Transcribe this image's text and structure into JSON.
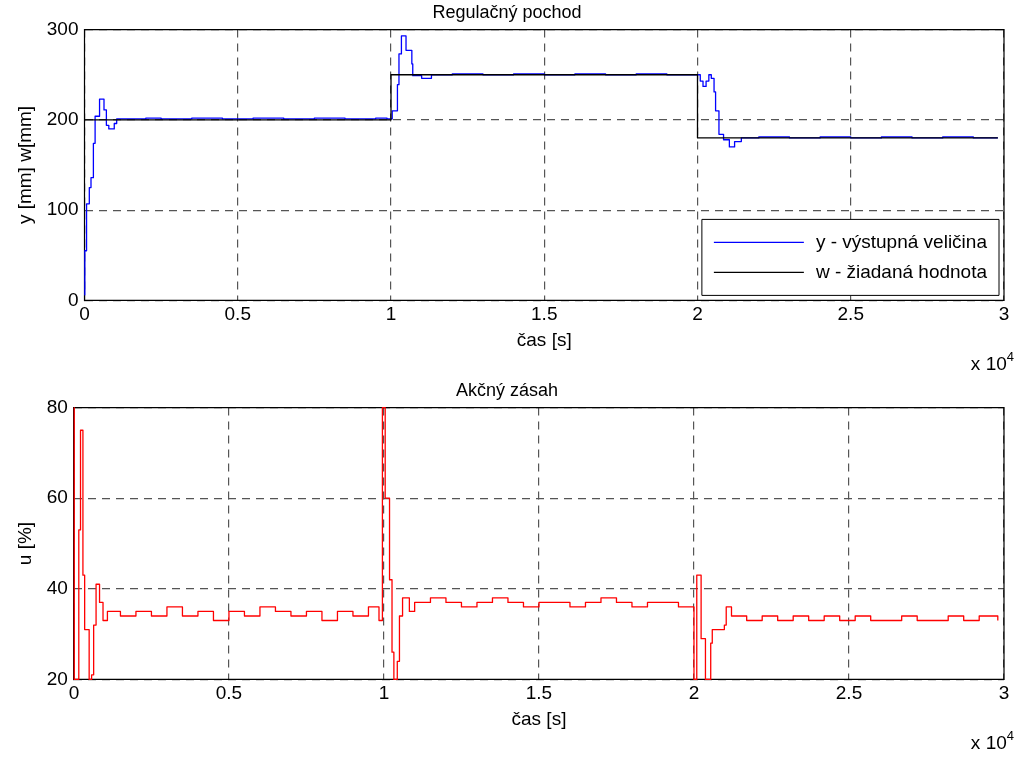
{
  "chart_data": [
    {
      "type": "step",
      "title": "Regulačný pochod",
      "xlabel": "čas [s]",
      "ylabel": "y [mm] w[mm]",
      "annotations": [
        "x 10$^{4}$"
      ],
      "xlim": [
        0,
        3
      ],
      "ylim": [
        0,
        300
      ],
      "xticks": [
        0,
        0.5,
        1,
        1.5,
        2,
        2.5,
        3
      ],
      "yticks": [
        0,
        100,
        200,
        300
      ],
      "grid": true,
      "legend": "bottom right",
      "line_style": "solid",
      "series": [
        {
          "name": "y - výstupná veličina",
          "color": "#0000ff",
          "x": [
            0.0003,
            0.001,
            0.0067,
            0.0157,
            0.0212,
            0.029,
            0.0346,
            0.0491,
            0.0636,
            0.0714,
            0.0793,
            0.0971,
            0.105,
            0.2,
            0.25,
            0.35,
            0.45,
            0.55,
            0.65,
            0.75,
            0.85,
            0.95,
            0.987,
            1.004,
            1.021,
            1.026,
            1.034,
            1.049,
            1.068,
            1.071,
            1.1,
            1.132,
            1.2,
            1.3,
            1.4,
            1.5,
            1.6,
            1.7,
            1.8,
            1.9,
            2.009,
            2.018,
            2.028,
            2.037,
            2.045,
            2.054,
            2.059,
            2.07,
            2.085,
            2.104,
            2.121,
            2.143,
            2.2,
            2.3,
            2.4,
            2.5,
            2.6,
            2.7,
            2.8,
            2.9,
            2.98
          ],
          "values": [
            6,
            55,
            107,
            125,
            136,
            174,
            204,
            223,
            211,
            194,
            190,
            196,
            201,
            202,
            201,
            202,
            201,
            202,
            201,
            202,
            201,
            202,
            201,
            210,
            239,
            273,
            293,
            277,
            262,
            249,
            246,
            250,
            251,
            250,
            251,
            250,
            251,
            250,
            251,
            250,
            243,
            237,
            243,
            250,
            246,
            231,
            210,
            184,
            178,
            170,
            176,
            180,
            181,
            180,
            181,
            180,
            181,
            180,
            181,
            180,
            180
          ]
        },
        {
          "name": "w - žiadaná hodnota",
          "color": "#000000",
          "x": [
            0,
            1,
            2,
            2.98
          ],
          "values": [
            200,
            250,
            180,
            180
          ]
        }
      ]
    },
    {
      "type": "step",
      "title": "Akčný zásah",
      "xlabel": "čas [s]",
      "ylabel": "u [%]",
      "annotations": [
        "x 10$^{4}$"
      ],
      "xlim": [
        0,
        3
      ],
      "ylim": [
        20,
        80
      ],
      "xticks": [
        0,
        0.5,
        1,
        1.5,
        2,
        2.5,
        3
      ],
      "yticks": [
        20,
        40,
        60,
        80
      ],
      "grid": true,
      "line_style": "solid",
      "series": [
        {
          "color": "#ff0000",
          "x": [
            0.0003,
            0.001,
            0.0157,
            0.0212,
            0.029,
            0.0346,
            0.0491,
            0.057,
            0.0636,
            0.0714,
            0.0826,
            0.0938,
            0.108,
            0.15,
            0.2,
            0.25,
            0.3,
            0.35,
            0.4,
            0.45,
            0.5,
            0.55,
            0.6,
            0.65,
            0.7,
            0.75,
            0.8,
            0.85,
            0.9,
            0.95,
            0.984,
            0.995,
            1.004,
            1.018,
            1.026,
            1.032,
            1.043,
            1.05,
            1.06,
            1.082,
            1.099,
            1.15,
            1.2,
            1.25,
            1.3,
            1.35,
            1.4,
            1.45,
            1.5,
            1.55,
            1.6,
            1.65,
            1.7,
            1.75,
            1.8,
            1.85,
            1.9,
            1.95,
            2,
            2.009,
            2.023,
            2.037,
            2.054,
            2.059,
            2.065,
            2.098,
            2.104,
            2.121,
            2.17,
            2.22,
            2.27,
            2.32,
            2.37,
            2.42,
            2.47,
            2.52,
            2.57,
            2.62,
            2.67,
            2.72,
            2.77,
            2.82,
            2.87,
            2.92,
            2.98
          ],
          "values": [
            80,
            20,
            53,
            75,
            43,
            31,
            20,
            21,
            32,
            41,
            37,
            33,
            35,
            34,
            35,
            34,
            36,
            34,
            35,
            33,
            35,
            34,
            36,
            35,
            34,
            35,
            33,
            35,
            34,
            36,
            33,
            80,
            60,
            42,
            26,
            20,
            24,
            34,
            38,
            35,
            37,
            38,
            37,
            36,
            37,
            38,
            37,
            36,
            37,
            37,
            36,
            37,
            38,
            37,
            36,
            37,
            37,
            36,
            20,
            43,
            29,
            20,
            28,
            31,
            31,
            32,
            36,
            34,
            33,
            34,
            33,
            34,
            33,
            34,
            33,
            34,
            33,
            33,
            34,
            33,
            33,
            34,
            33,
            34,
            33
          ]
        }
      ]
    }
  ]
}
